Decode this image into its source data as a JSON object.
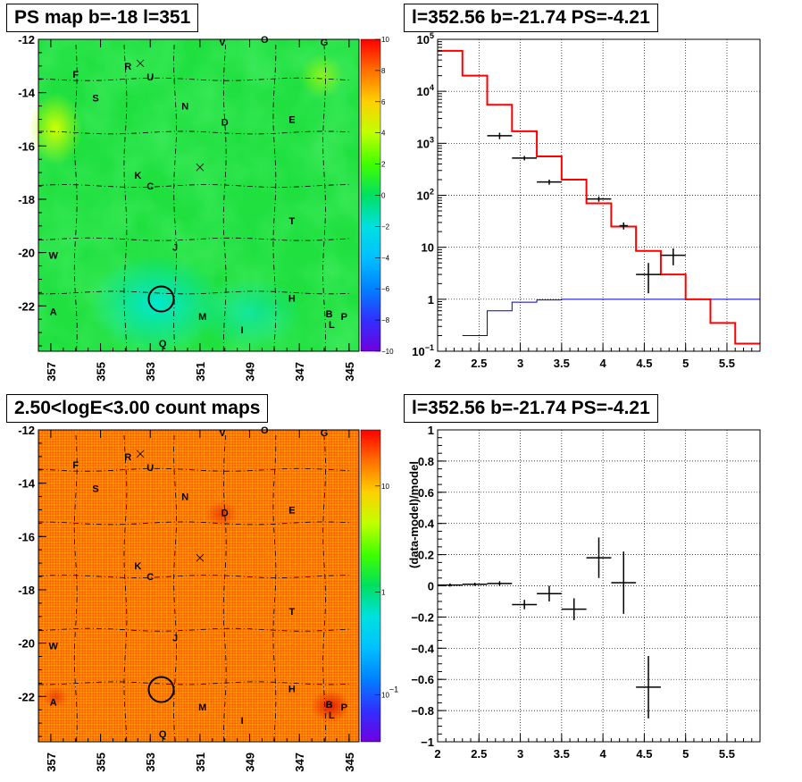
{
  "panels": {
    "ps_map": {
      "title": "PS map b=-18 l=351"
    },
    "spectrum": {
      "title": "l=352.56 b=-21.74 PS=-4.21"
    },
    "count_map": {
      "title": "2.50<logE<3.00 count maps"
    },
    "residual": {
      "title": "l=352.56 b=-21.74 PS=-4.21"
    }
  },
  "colors": {
    "data": "#000000",
    "model": "#ff0000",
    "background": "#0000cc"
  },
  "chart_data": [
    {
      "type": "heatmap",
      "title": "PS map b=-18 l=351",
      "xlabel": "",
      "ylabel": "",
      "x_ticks": [
        "357",
        "355",
        "353",
        "351",
        "349",
        "347",
        "345"
      ],
      "y_ticks": [
        "-12",
        "-14",
        "-16",
        "-18",
        "-20",
        "-22"
      ],
      "xlim": [
        357.5,
        344.6
      ],
      "ylim": [
        -23.7,
        -12
      ],
      "colorbar": {
        "range": [
          -10,
          10
        ],
        "ticks": [
          "10",
          "8",
          "6",
          "4",
          "2",
          "0",
          "−2",
          "−4",
          "−6",
          "−8",
          "−10"
        ]
      },
      "source_labels": [
        {
          "t": "V",
          "l": 350.1,
          "b": -12.1
        },
        {
          "t": "O",
          "l": 348.4,
          "b": -12.0
        },
        {
          "t": "G",
          "l": 346.0,
          "b": -12.1
        },
        {
          "t": "F",
          "l": 356.0,
          "b": -13.3
        },
        {
          "t": "R",
          "l": 353.9,
          "b": -13.0
        },
        {
          "t": "U",
          "l": 353.0,
          "b": -13.4
        },
        {
          "t": "S",
          "l": 355.2,
          "b": -14.2
        },
        {
          "t": "N",
          "l": 351.6,
          "b": -14.5
        },
        {
          "t": "D",
          "l": 350.0,
          "b": -15.1
        },
        {
          "t": "E",
          "l": 347.3,
          "b": -15.0
        },
        {
          "t": "K",
          "l": 353.5,
          "b": -17.1
        },
        {
          "t": "C",
          "l": 353.0,
          "b": -17.5
        },
        {
          "t": "T",
          "l": 347.3,
          "b": -18.8
        },
        {
          "t": "J",
          "l": 352.0,
          "b": -19.8
        },
        {
          "t": "W",
          "l": 356.9,
          "b": -20.1
        },
        {
          "t": "H",
          "l": 347.3,
          "b": -21.7
        },
        {
          "t": "A",
          "l": 356.9,
          "b": -22.2
        },
        {
          "t": "M",
          "l": 350.9,
          "b": -22.4
        },
        {
          "t": "B",
          "l": 345.8,
          "b": -22.3
        },
        {
          "t": "P",
          "l": 345.2,
          "b": -22.4
        },
        {
          "t": "L",
          "l": 345.7,
          "b": -22.7
        },
        {
          "t": "I",
          "l": 349.3,
          "b": -22.9
        },
        {
          "t": "Q",
          "l": 352.5,
          "b": -23.4
        }
      ],
      "circle": {
        "l": 352.56,
        "b": -21.74
      },
      "crosses": [
        {
          "l": 353.4,
          "b": -12.9
        },
        {
          "l": 351.0,
          "b": -16.8
        }
      ]
    },
    {
      "type": "line",
      "title": "l=352.56 b=-21.74 PS=-4.21",
      "xlabel": "",
      "ylabel": "",
      "xlim": [
        2,
        5.9
      ],
      "ylim": [
        0.1,
        100000
      ],
      "log_y": true,
      "x_ticks": [
        "2",
        "2.5",
        "3",
        "3.5",
        "4",
        "4.5",
        "5",
        "5.5"
      ],
      "y_ticks": [
        "10^5",
        "10^4",
        "10^3",
        "10^2",
        "10",
        "1",
        "10^-1"
      ],
      "grid": true,
      "model_red": {
        "edges": [
          2.0,
          2.3,
          2.6,
          2.9,
          3.2,
          3.5,
          3.8,
          4.1,
          4.4,
          4.7,
          5.0,
          5.3,
          5.6,
          5.9
        ],
        "values": [
          60000,
          20000,
          5500,
          1700,
          560,
          200,
          70,
          25,
          8.5,
          3.0,
          1.0,
          0.35,
          0.14
        ]
      },
      "model_blue": {
        "edges": [
          2.3,
          2.6,
          2.9,
          3.2,
          3.5,
          5.9
        ],
        "values": [
          0.2,
          0.6,
          0.88,
          0.97,
          1.0
        ]
      },
      "data_points": [
        {
          "x": 2.75,
          "xerr": 0.15,
          "y": 1400,
          "ylo": 1200,
          "yhi": 1600
        },
        {
          "x": 3.05,
          "xerr": 0.15,
          "y": 520,
          "ylo": 470,
          "yhi": 570
        },
        {
          "x": 3.35,
          "xerr": 0.15,
          "y": 180,
          "ylo": 160,
          "yhi": 200
        },
        {
          "x": 3.95,
          "xerr": 0.15,
          "y": 85,
          "ylo": 75,
          "yhi": 95
        },
        {
          "x": 4.25,
          "xerr": 0.05,
          "y": 26,
          "ylo": 22,
          "yhi": 30
        },
        {
          "x": 4.55,
          "xerr": 0.15,
          "y": 3.0,
          "ylo": 1.3,
          "yhi": 5.0
        },
        {
          "x": 4.85,
          "xerr": 0.15,
          "y": 7.0,
          "ylo": 4.5,
          "yhi": 9.5
        }
      ]
    },
    {
      "type": "heatmap",
      "title": "2.50<logE<3.00 count maps",
      "xlabel": "",
      "ylabel": "",
      "x_ticks": [
        "357",
        "355",
        "353",
        "351",
        "349",
        "347",
        "345"
      ],
      "y_ticks": [
        "-12",
        "-14",
        "-16",
        "-18",
        "-20",
        "-22"
      ],
      "xlim": [
        357.5,
        344.6
      ],
      "ylim": [
        -23.7,
        -12
      ],
      "colorbar": {
        "log": true,
        "ticks": [
          "10",
          "1",
          "10^-1"
        ]
      },
      "circle": {
        "l": 352.56,
        "b": -21.74
      }
    },
    {
      "type": "scatter",
      "title": "l=352.56 b=-21.74 PS=-4.21",
      "xlabel": "",
      "ylabel": "(data-model)/model",
      "xlim": [
        2,
        5.9
      ],
      "ylim": [
        -1,
        1
      ],
      "x_ticks": [
        "2",
        "2.5",
        "3",
        "3.5",
        "4",
        "4.5",
        "5",
        "5.5"
      ],
      "y_ticks": [
        "1",
        "0.8",
        "0.6",
        "0.4",
        "0.2",
        "0",
        "−0.2",
        "−0.4",
        "−0.6",
        "−0.8",
        "−1"
      ],
      "grid": true,
      "points": [
        {
          "x": 2.15,
          "xerr": 0.15,
          "y": 0.005,
          "err": 0.01
        },
        {
          "x": 2.45,
          "xerr": 0.15,
          "y": 0.01,
          "err": 0.01
        },
        {
          "x": 2.75,
          "xerr": 0.15,
          "y": 0.015,
          "err": 0.015
        },
        {
          "x": 3.05,
          "xerr": 0.15,
          "y": -0.12,
          "err": 0.03
        },
        {
          "x": 3.35,
          "xerr": 0.15,
          "y": -0.05,
          "err": 0.05
        },
        {
          "x": 3.65,
          "xerr": 0.15,
          "y": -0.15,
          "err": 0.07
        },
        {
          "x": 3.95,
          "xerr": 0.15,
          "y": 0.18,
          "err": 0.13
        },
        {
          "x": 4.25,
          "xerr": 0.15,
          "y": 0.02,
          "err": 0.2
        },
        {
          "x": 4.55,
          "xerr": 0.15,
          "y": -0.65,
          "err": 0.2
        }
      ]
    }
  ]
}
